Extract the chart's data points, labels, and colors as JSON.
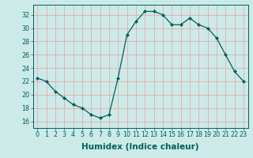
{
  "x": [
    0,
    1,
    2,
    3,
    4,
    5,
    6,
    7,
    8,
    9,
    10,
    11,
    12,
    13,
    14,
    15,
    16,
    17,
    18,
    19,
    20,
    21,
    22,
    23
  ],
  "y": [
    22.5,
    22,
    20.5,
    19.5,
    18.5,
    18,
    17,
    16.5,
    17,
    22.5,
    29,
    31,
    32.5,
    32.5,
    32,
    30.5,
    30.5,
    31.5,
    30.5,
    30,
    28.5,
    26,
    23.5,
    22
  ],
  "line_color": "#005f5f",
  "marker_color": "#005f5f",
  "bg_color": "#cceae8",
  "grid_color": "#e8a0a0",
  "xlabel": "Humidex (Indice chaleur)",
  "ylim": [
    15,
    33.5
  ],
  "xlim": [
    -0.5,
    23.5
  ],
  "yticks": [
    16,
    18,
    20,
    22,
    24,
    26,
    28,
    30,
    32
  ],
  "xticks": [
    0,
    1,
    2,
    3,
    4,
    5,
    6,
    7,
    8,
    9,
    10,
    11,
    12,
    13,
    14,
    15,
    16,
    17,
    18,
    19,
    20,
    21,
    22,
    23
  ],
  "tick_fontsize": 5.8,
  "xlabel_fontsize": 7.5,
  "xlabel_fontweight": "bold"
}
